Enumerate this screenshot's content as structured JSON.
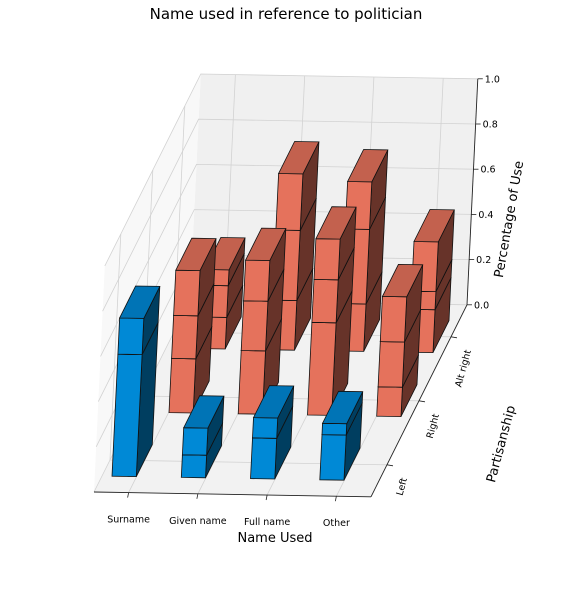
{
  "chart_data": {
    "type": "bar",
    "title": "Name used in reference to politician",
    "xlabel": "Name Used",
    "ylabel": "Partisanship",
    "zlabel": "Percentage of Use",
    "categories": [
      "Surname",
      "Given name",
      "Full name",
      "Other"
    ],
    "partisanship": [
      "Left",
      "Right",
      "Alt right"
    ],
    "zticks": [
      "0.0",
      "0.2",
      "0.4",
      "0.6",
      "0.8",
      "1.0"
    ],
    "zlim": [
      0,
      1
    ],
    "series": [
      {
        "values": [
          [
            0.0,
            0.54,
            0.0,
            0.16,
            0.0
          ],
          [
            0.0,
            0.1,
            0.0,
            0.12,
            0.0
          ],
          [
            0.0,
            0.18,
            0.0,
            0.09,
            0.0
          ],
          [
            0.0,
            0.2,
            0.0,
            0.05,
            0.0
          ]
        ]
      },
      {
        "values": [
          [
            0.24,
            0.0,
            0.19,
            0.0,
            0.2
          ],
          [
            0.28,
            0.0,
            0.22,
            0.0,
            0.18
          ],
          [
            0.41,
            0.0,
            0.19,
            0.0,
            0.18
          ],
          [
            0.13,
            0.0,
            0.2,
            0.0,
            0.2
          ]
        ]
      },
      {
        "values": [
          [
            0.14,
            0.0,
            0.14,
            0.0,
            0.07
          ],
          [
            0.22,
            0.0,
            0.31,
            0.0,
            0.25
          ],
          [
            0.21,
            0.0,
            0.33,
            0.0,
            0.21
          ],
          [
            0.19,
            0.0,
            0.08,
            0.0,
            0.22
          ]
        ]
      }
    ],
    "colors": {
      "blue": "#0089d6",
      "salmon": "#e5725c"
    },
    "grid": true
  }
}
